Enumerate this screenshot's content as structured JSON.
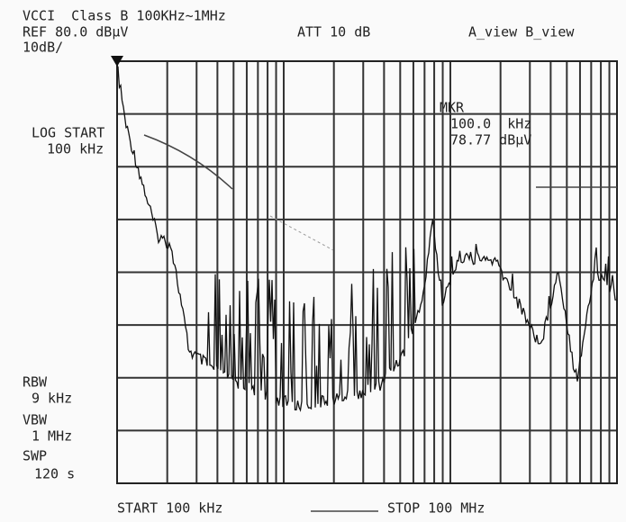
{
  "header": {
    "line1": "VCCI  Class B 100KHz~1MHz",
    "ref": "REF 80.0 dBμV",
    "att": "ATT 10 dB",
    "view": "A_view B_view",
    "scale": "10dB/"
  },
  "left": {
    "start_label": "LOG START",
    "start_value": "100 kHz",
    "rbw_label": "RBW",
    "rbw": "9 kHz",
    "vbw_label": "VBW",
    "vbw": "1 MHz",
    "swp_label": "SWP",
    "swp": "120 s"
  },
  "marker": {
    "label": "MKR",
    "freq": "100.0  kHz",
    "level": "78.77 dBμV"
  },
  "footer": {
    "start": "START 100 kHz",
    "stop": "STOP 100 MHz"
  }
}
